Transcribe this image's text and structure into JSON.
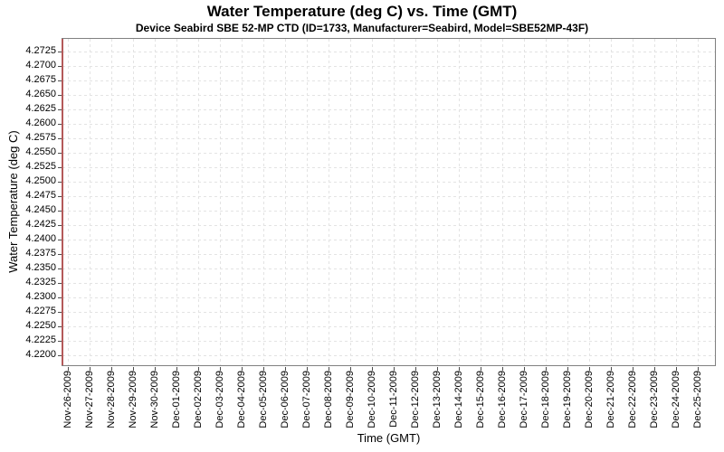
{
  "chart_data": {
    "type": "line",
    "title": "Water Temperature (deg C) vs. Time (GMT)",
    "subtitle": "Device Seabird SBE 52-MP CTD (ID=1733, Manufacturer=Seabird, Model=SBE52MP-43F)",
    "xlabel": "Time (GMT)",
    "ylabel": "Water Temperature (deg C)",
    "x_tick_labels": [
      "Nov-26-2009",
      "Nov-27-2009",
      "Nov-28-2009",
      "Nov-29-2009",
      "Nov-30-2009",
      "Dec-01-2009",
      "Dec-02-2009",
      "Dec-03-2009",
      "Dec-04-2009",
      "Dec-05-2009",
      "Dec-06-2009",
      "Dec-07-2009",
      "Dec-08-2009",
      "Dec-09-2009",
      "Dec-10-2009",
      "Dec-11-2009",
      "Dec-12-2009",
      "Dec-13-2009",
      "Dec-14-2009",
      "Dec-15-2009",
      "Dec-16-2009",
      "Dec-17-2009",
      "Dec-18-2009",
      "Dec-19-2009",
      "Dec-20-2009",
      "Dec-21-2009",
      "Dec-22-2009",
      "Dec-23-2009",
      "Dec-24-2009",
      "Dec-25-2009"
    ],
    "y_tick_labels": [
      "4.2725",
      "4.2700",
      "4.2675",
      "4.2650",
      "4.2625",
      "4.2600",
      "4.2575",
      "4.2550",
      "4.2525",
      "4.2500",
      "4.2475",
      "4.2450",
      "4.2425",
      "4.2400",
      "4.2375",
      "4.2350",
      "4.2325",
      "4.2300",
      "4.2275",
      "4.2250",
      "4.2225",
      "4.2200"
    ],
    "ylim": [
      4.2181,
      4.2748
    ],
    "y_tick_step": 0.0025,
    "grid": true,
    "legend": "none",
    "colors": {
      "series": "#b45a5a",
      "grid": "#e3e3e3",
      "plot_outline": "#808080",
      "text": "#000000",
      "background": "#ffffff"
    },
    "series": [
      {
        "name": "Water Temperature",
        "color": "#b45a5a",
        "x": "Nov-26-2009",
        "y_min": 4.2181,
        "y_max": 4.2748,
        "description": "All data rendered as a single vertical red line at the left edge of the plot, spanning the full visible temperature range."
      }
    ]
  }
}
